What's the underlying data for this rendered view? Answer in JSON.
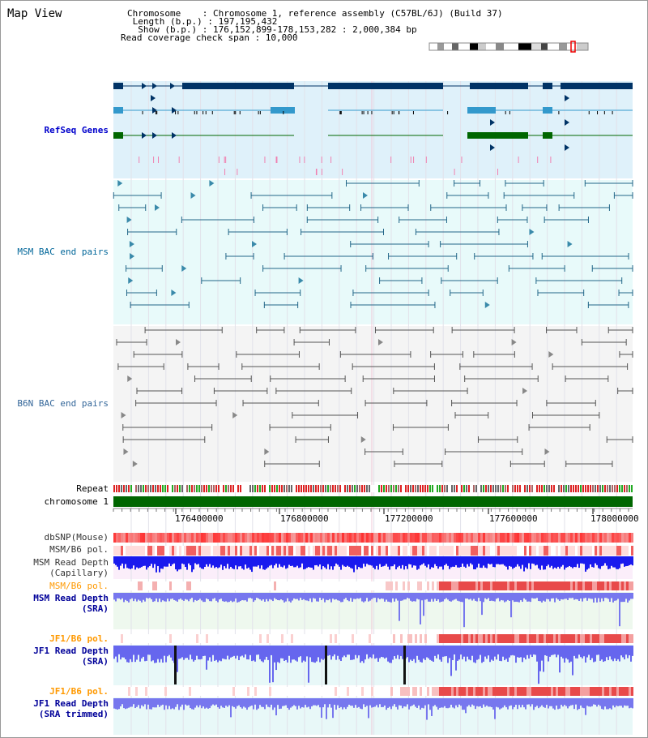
{
  "page": {
    "title": "Map View"
  },
  "header": {
    "chromosome": "Chromosome    : Chromosome 1, reference assembly (C57BL/6J) (Build 37)",
    "length": " Length (b.p.) : 197,195,432",
    "show": "  Show (b.p.) : 176,152,899-178,153,282 : 2,000,384 bp",
    "read_coverage": "Read coverage check span : 10,000"
  },
  "tracks": {
    "refseq": "RefSeq Genes",
    "msm_bac": "MSM BAC end pairs",
    "b6n_bac": "B6N BAC end pairs",
    "repeat": "Repeat",
    "chromosome": "chromosome 1",
    "dbsnp": "dbSNP(Mouse)",
    "msm_b6_pol_1": "MSM/B6 pol.",
    "msm_read_depth_capillary": "MSM Read Depth\n(Capillary)",
    "msm_b6_pol_2": "MSM/B6 pol.",
    "msm_read_depth_sra": "MSM Read Depth\n(SRA)",
    "jf1_b6_pol_1": "JF1/B6 pol.",
    "jf1_read_depth_sra": "JF1 Read Depth\n(SRA)",
    "jf1_b6_pol_2": "JF1/B6 pol.",
    "jf1_read_depth_trimmed": "JF1 Read Depth\n(SRA trimmed)"
  },
  "ruler": {
    "ticks": [
      "176400000",
      "176800000",
      "177200000",
      "177600000",
      "178000000"
    ]
  },
  "colors": {
    "refseq_label": "#0000cc",
    "msm_label": "#006699",
    "b6n_label": "#336699",
    "orange_label": "#ff9900",
    "navy_label": "#000099",
    "gene_navy": "#003366",
    "gene_teal": "#3399cc",
    "gene_green": "#006600",
    "chromosome_bar": "#006600"
  }
}
